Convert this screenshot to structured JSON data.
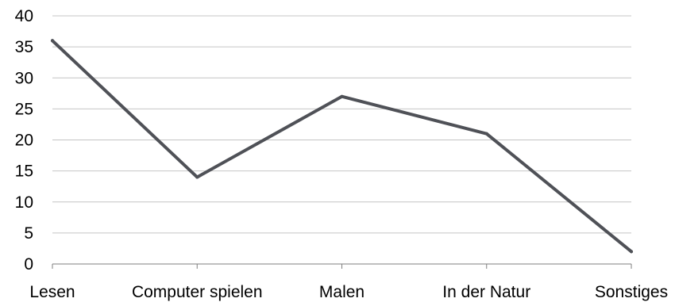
{
  "chart_data": {
    "type": "line",
    "title": "",
    "xlabel": "",
    "ylabel": "",
    "categories": [
      "Lesen",
      "Computer spielen",
      "Malen",
      "In der Natur",
      "Sonstiges"
    ],
    "series": [
      {
        "values": [
          36,
          14,
          27,
          21,
          2
        ],
        "color": "#4f5157"
      }
    ],
    "ylim": [
      0,
      40
    ],
    "yticks": [
      0,
      5,
      10,
      15,
      20,
      25,
      30,
      35,
      40
    ],
    "grid": true,
    "legend": "none"
  }
}
